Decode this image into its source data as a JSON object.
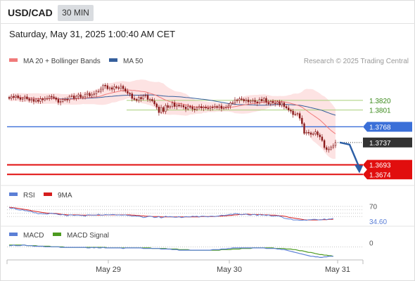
{
  "header": {
    "symbol": "USD/CAD",
    "timeframe": "30 MIN",
    "datetime": "Saturday, May 31, 2025 1:00:40 AM CET"
  },
  "legend": {
    "ma20_label": "MA 20 + Bollinger Bands",
    "ma50_label": "MA 50",
    "copyright": "Research © 2025 Trading Central",
    "rsi_label": "RSI",
    "rsi_ma_label": "9MA",
    "macd_label": "MACD",
    "macd_signal_label": "MACD Signal"
  },
  "colors": {
    "ma20": "#f07a7a",
    "ma50": "#355f9c",
    "bollinger_fill": "#fde3e3",
    "candle": "#8a1b1b",
    "blue_level": "#3a6fd8",
    "red_level": "#e10e0e",
    "green_level": "#a8cf79",
    "rsi": "#5b7fd6",
    "rsi_ma": "#d51d1d",
    "macd": "#5b7fd6",
    "macd_signal": "#4c9a1f",
    "current_price_bg": "#333333",
    "arrow": "#2d5fa6"
  },
  "chart_data": [
    {
      "type": "candlestick",
      "title": "USD/CAD",
      "x_labels": [
        "May 29",
        "May 30",
        "May 31"
      ],
      "ylim": [
        1.3655,
        1.3885
      ],
      "current_price": 1.3737,
      "levels": [
        {
          "value": 1.382,
          "label": "1.3820",
          "style": "green"
        },
        {
          "value": 1.3801,
          "label": "1.3801",
          "style": "green"
        },
        {
          "value": 1.3768,
          "label": "1.3768",
          "style": "blue"
        },
        {
          "value": 1.3693,
          "label": "1.3693",
          "style": "red"
        },
        {
          "value": 1.3674,
          "label": "1.3674",
          "style": "red"
        }
      ],
      "forecast_arrow": {
        "from": 1.3737,
        "to": 1.3693
      },
      "closes": [
        1.3824,
        1.3828,
        1.3826,
        1.3829,
        1.3825,
        1.3822,
        1.3824,
        1.3827,
        1.3823,
        1.382,
        1.3822,
        1.3818,
        1.3821,
        1.3818,
        1.3823,
        1.3821,
        1.3824,
        1.3824,
        1.3828,
        1.3827,
        1.3825,
        1.3822,
        1.3816,
        1.3818,
        1.3822,
        1.3822,
        1.3821,
        1.3828,
        1.3829,
        1.3824,
        1.3828,
        1.3831,
        1.3826,
        1.3827,
        1.3832,
        1.3834,
        1.3829,
        1.3832,
        1.3833,
        1.3838,
        1.3838,
        1.3842,
        1.385,
        1.3849,
        1.3843,
        1.3845,
        1.3842,
        1.3847,
        1.3845,
        1.3844,
        1.3848,
        1.3843,
        1.3838,
        1.3834,
        1.3833,
        1.3824,
        1.3822,
        1.382,
        1.3826,
        1.3823,
        1.3829,
        1.383,
        1.3822,
        1.3822,
        1.3819,
        1.3813,
        1.3807,
        1.3796,
        1.3806,
        1.3798,
        1.381,
        1.3806,
        1.3808,
        1.3815,
        1.3808,
        1.3811,
        1.3809,
        1.381,
        1.3807,
        1.3803,
        1.3808,
        1.3807,
        1.3803,
        1.3802,
        1.3806,
        1.3808,
        1.3805,
        1.3807,
        1.3805,
        1.3804,
        1.3807,
        1.3806,
        1.3808,
        1.3806,
        1.3809,
        1.3804,
        1.3806,
        1.3807,
        1.3809,
        1.3815,
        1.3815,
        1.3821,
        1.382,
        1.3823,
        1.3822,
        1.3819,
        1.3821,
        1.3817,
        1.3819,
        1.382,
        1.3817,
        1.3815,
        1.3822,
        1.3819,
        1.3824,
        1.3816,
        1.3813,
        1.3818,
        1.3815,
        1.3814,
        1.3817,
        1.3811,
        1.3815,
        1.3808,
        1.3805,
        1.3801,
        1.3799,
        1.3792,
        1.3793,
        1.3794,
        1.3785,
        1.3774,
        1.3755,
        1.3757,
        1.3756,
        1.3753,
        1.3754,
        1.3758,
        1.3752,
        1.3748,
        1.3741,
        1.3727,
        1.3723,
        1.3724,
        1.3728,
        1.3731,
        1.3737
      ]
    },
    {
      "type": "line",
      "title": "RSI",
      "ylim": [
        20,
        90
      ],
      "level": 70,
      "current": 34.6,
      "series": [
        {
          "name": "RSI",
          "values": [
            66,
            64,
            65,
            62,
            60,
            59,
            60,
            57,
            57,
            55,
            55,
            51,
            51,
            48,
            49,
            48,
            48,
            47,
            49,
            50,
            48,
            48,
            46,
            45,
            46,
            44,
            42,
            45,
            45,
            43,
            44,
            44,
            43,
            43,
            41,
            45,
            45,
            44,
            44,
            44,
            47,
            44,
            44,
            46,
            45,
            45,
            46,
            46,
            44,
            45,
            44,
            44,
            45,
            43,
            43,
            41,
            42,
            41,
            41,
            40,
            37,
            38,
            40,
            41,
            40,
            37,
            38,
            40,
            36,
            38,
            41,
            39,
            40,
            39,
            38,
            38,
            40,
            37,
            38,
            40,
            39,
            39,
            41,
            40,
            41,
            39,
            41,
            41,
            40,
            39,
            41,
            41,
            40,
            41,
            42,
            44,
            43,
            44,
            45,
            47,
            46,
            49,
            48,
            47,
            45,
            47,
            47,
            45,
            44,
            46,
            46,
            43,
            46,
            44,
            45,
            43,
            45,
            42,
            41,
            42,
            42,
            41,
            39,
            35,
            34,
            33,
            33,
            30,
            30,
            30,
            29,
            29,
            30,
            29,
            31,
            31,
            32,
            32,
            31,
            30,
            31,
            33,
            31,
            33,
            33,
            35
          ]
        },
        {
          "name": "9MA",
          "values": [
            67,
            67,
            66,
            65,
            64,
            63,
            62,
            61,
            60,
            59,
            57,
            56,
            55,
            54,
            53,
            52,
            51,
            50,
            50,
            49,
            49,
            49,
            48,
            47,
            46,
            46,
            45,
            45,
            45,
            45,
            45,
            45,
            44,
            44,
            44,
            44,
            44,
            44,
            44,
            44,
            44,
            44,
            44,
            45,
            45,
            45,
            45,
            45,
            45,
            45,
            45,
            45,
            45,
            45,
            45,
            44,
            44,
            43,
            43,
            42,
            42,
            41,
            41,
            41,
            40,
            40,
            40,
            40,
            39,
            39,
            39,
            39,
            39,
            39,
            39,
            39,
            39,
            39,
            39,
            39,
            39,
            39,
            39,
            39,
            39,
            39,
            40,
            40,
            40,
            40,
            40,
            40,
            40,
            41,
            41,
            41,
            42,
            42,
            43,
            43,
            44,
            45,
            45,
            46,
            46,
            46,
            47,
            47,
            46,
            46,
            46,
            46,
            46,
            46,
            45,
            45,
            45,
            44,
            44,
            44,
            43,
            42,
            42,
            41,
            40,
            38,
            37,
            36,
            35,
            34,
            33,
            32,
            31,
            30,
            30,
            30,
            30,
            30,
            30,
            31,
            31,
            31,
            31,
            32,
            32,
            32
          ]
        }
      ]
    },
    {
      "type": "line",
      "title": "MACD",
      "ylim": [
        -0.0022,
        0.0012
      ],
      "level": 0,
      "current": -0.0,
      "series": [
        {
          "name": "MACD",
          "values": [
            0.0001,
            0.0001,
            0.0002,
            0.0001,
            0.0001,
            0.0001,
            0.0002,
            0.0002,
            0.0001,
            0.0001,
            0.0001,
            0.0,
            0.0,
            -0.0,
            -0.0,
            -0.0,
            -0.0001,
            -0.0001,
            -0.0001,
            -0.0001,
            -0.0001,
            -0.0001,
            -0.0001,
            -0.0002,
            -0.0002,
            -0.0002,
            -0.0002,
            -0.0002,
            -0.0002,
            -0.0002,
            -0.0002,
            -0.0002,
            -0.0002,
            -0.0002,
            -0.0002,
            -0.0003,
            -0.0003,
            -0.0002,
            -0.0003,
            -0.0002,
            -0.0003,
            -0.0003,
            -0.0002,
            -0.0003,
            -0.0003,
            -0.0003,
            -0.0003,
            -0.0003,
            -0.0003,
            -0.0003,
            -0.0003,
            -0.0004,
            -0.0003,
            -0.0003,
            -0.0003,
            -0.0003,
            -0.0003,
            -0.0003,
            -0.0003,
            -0.0003,
            -0.0004,
            -0.0004,
            -0.0004,
            -0.0004,
            -0.0004,
            -0.0004,
            -0.0004,
            -0.0004,
            -0.0005,
            -0.0005,
            -0.0005,
            -0.0005,
            -0.0005,
            -0.0006,
            -0.0006,
            -0.0006,
            -0.0007,
            -0.0007,
            -0.0007,
            -0.0007,
            -0.0007,
            -0.0007,
            -0.0007,
            -0.0007,
            -0.0007,
            -0.0007,
            -0.0007,
            -0.0007,
            -0.0007,
            -0.0007,
            -0.0007,
            -0.0006,
            -0.0006,
            -0.0006,
            -0.0006,
            -0.0005,
            -0.0005,
            -0.0005,
            -0.0004,
            -0.0004,
            -0.0003,
            -0.0003,
            -0.0003,
            -0.0003,
            -0.0003,
            -0.0003,
            -0.0003,
            -0.0003,
            -0.0003,
            -0.0003,
            -0.0003,
            -0.0003,
            -0.0003,
            -0.0003,
            -0.0003,
            -0.0004,
            -0.0004,
            -0.0004,
            -0.0004,
            -0.0004,
            -0.0005,
            -0.0005,
            -0.0006,
            -0.0006,
            -0.0007,
            -0.0008,
            -0.0009,
            -0.001,
            -0.0011,
            -0.0012,
            -0.0013,
            -0.0014,
            -0.0015,
            -0.0016,
            -0.0017,
            -0.0018,
            -0.0018,
            -0.0019,
            -0.0019,
            -0.002,
            -0.002,
            -0.0019,
            -0.0019,
            -0.0018,
            -0.0018,
            -0.0018
          ]
        },
        {
          "name": "MACD Signal",
          "values": [
            0.0002,
            0.0002,
            0.0002,
            0.0002,
            0.0002,
            0.0002,
            0.0002,
            0.0002,
            0.0001,
            0.0001,
            0.0001,
            0.0001,
            0.0001,
            0.0,
            0.0,
            0.0,
            -0.0,
            -0.0,
            -0.0,
            -0.0001,
            -0.0001,
            -0.0001,
            -0.0001,
            -0.0001,
            -0.0001,
            -0.0002,
            -0.0002,
            -0.0002,
            -0.0002,
            -0.0002,
            -0.0002,
            -0.0002,
            -0.0002,
            -0.0002,
            -0.0002,
            -0.0002,
            -0.0002,
            -0.0002,
            -0.0002,
            -0.0002,
            -0.0002,
            -0.0002,
            -0.0002,
            -0.0002,
            -0.0003,
            -0.0003,
            -0.0003,
            -0.0003,
            -0.0003,
            -0.0003,
            -0.0003,
            -0.0003,
            -0.0003,
            -0.0003,
            -0.0003,
            -0.0003,
            -0.0003,
            -0.0003,
            -0.0003,
            -0.0003,
            -0.0003,
            -0.0003,
            -0.0003,
            -0.0003,
            -0.0004,
            -0.0004,
            -0.0004,
            -0.0004,
            -0.0004,
            -0.0004,
            -0.0004,
            -0.0005,
            -0.0005,
            -0.0005,
            -0.0005,
            -0.0005,
            -0.0006,
            -0.0006,
            -0.0006,
            -0.0006,
            -0.0006,
            -0.0007,
            -0.0007,
            -0.0007,
            -0.0007,
            -0.0007,
            -0.0007,
            -0.0007,
            -0.0007,
            -0.0007,
            -0.0007,
            -0.0007,
            -0.0007,
            -0.0007,
            -0.0007,
            -0.0006,
            -0.0006,
            -0.0006,
            -0.0006,
            -0.0006,
            -0.0005,
            -0.0005,
            -0.0005,
            -0.0005,
            -0.0004,
            -0.0004,
            -0.0004,
            -0.0004,
            -0.0004,
            -0.0003,
            -0.0003,
            -0.0003,
            -0.0003,
            -0.0003,
            -0.0003,
            -0.0003,
            -0.0003,
            -0.0003,
            -0.0003,
            -0.0004,
            -0.0004,
            -0.0004,
            -0.0004,
            -0.0004,
            -0.0005,
            -0.0005,
            -0.0005,
            -0.0006,
            -0.0006,
            -0.0007,
            -0.0008,
            -0.0008,
            -0.0009,
            -0.001,
            -0.0011,
            -0.0011,
            -0.0012,
            -0.0013,
            -0.0014,
            -0.0015,
            -0.0015,
            -0.0016,
            -0.0016,
            -0.0017,
            -0.0017,
            -0.0018
          ]
        }
      ]
    }
  ]
}
